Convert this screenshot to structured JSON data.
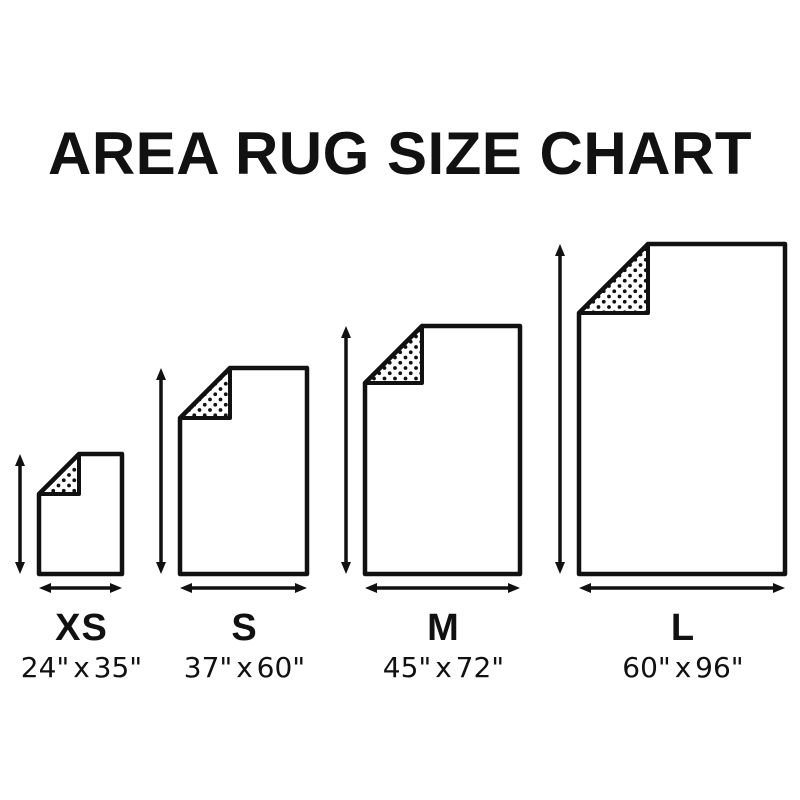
{
  "title": "AREA RUG SIZE CHART",
  "colors": {
    "ink": "#111111",
    "background": "#ffffff"
  },
  "units": "inches",
  "rugs": [
    {
      "id": "xs",
      "label": "XS",
      "dimensions": "24\" x 35\"",
      "width_in": 24,
      "height_in": 35
    },
    {
      "id": "s",
      "label": "S",
      "dimensions": "37\" x 60\"",
      "width_in": 37,
      "height_in": 60
    },
    {
      "id": "m",
      "label": "M",
      "dimensions": "45\" x 72\"",
      "width_in": 45,
      "height_in": 72
    },
    {
      "id": "l",
      "label": "L",
      "dimensions": "60\" x 96\"",
      "width_in": 60,
      "height_in": 96
    }
  ]
}
